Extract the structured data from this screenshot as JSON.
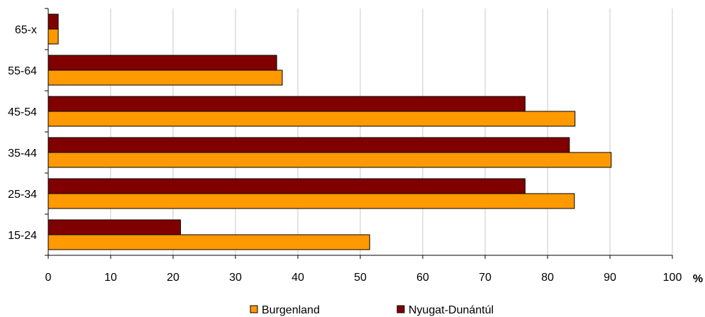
{
  "chart_data": {
    "type": "bar",
    "orientation": "horizontal",
    "categories": [
      "15-24",
      "25-34",
      "35-44",
      "45-54",
      "55-64",
      "65-x"
    ],
    "series": [
      {
        "name": "Burgenland",
        "values": [
          51.5,
          84.3,
          90.2,
          84.4,
          37.5,
          1.6
        ],
        "color": "#ff9900"
      },
      {
        "name": "Nyugat-Dunántúl",
        "values": [
          21.2,
          76.4,
          83.5,
          76.4,
          36.6,
          1.6
        ],
        "color": "#800000"
      }
    ],
    "xlim": [
      0,
      100
    ],
    "xticks": [
      "0",
      "10",
      "20",
      "30",
      "40",
      "50",
      "60",
      "70",
      "80",
      "90",
      "100"
    ],
    "xunit": "%",
    "grid": "vertical",
    "legend_position": "bottom"
  }
}
